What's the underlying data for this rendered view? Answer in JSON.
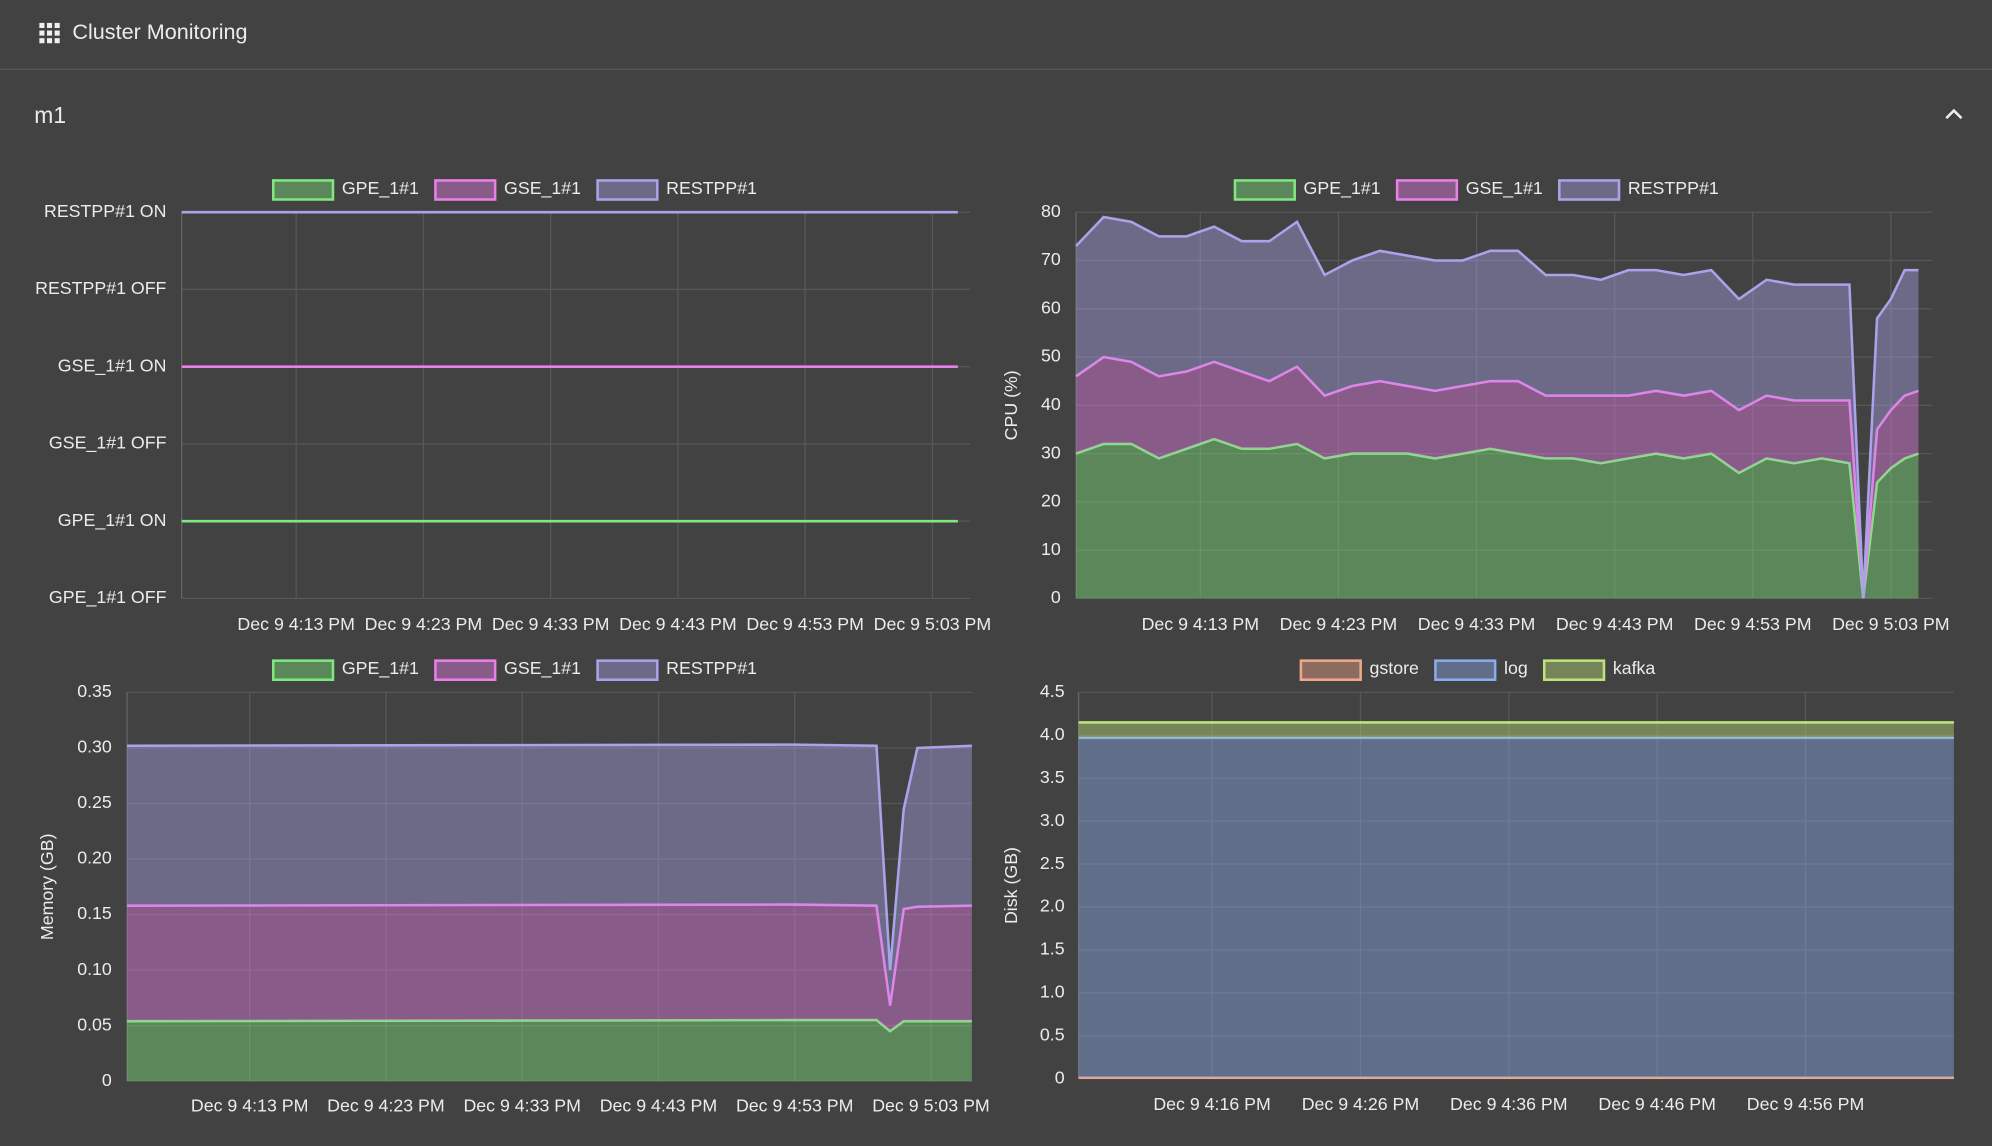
{
  "header": {
    "title": "Cluster Monitoring"
  },
  "section": {
    "title": "m1"
  },
  "chart_data": [
    {
      "type": "line",
      "legend": true,
      "grid": true,
      "x": [
        "Dec 9 4:04 PM",
        "Dec 9 5:05 PM"
      ],
      "xlim": [
        "Dec 9 4:04 PM",
        "Dec 9 5:06 PM"
      ],
      "xticks": [
        "Dec 9 4:13 PM",
        "Dec 9 4:23 PM",
        "Dec 9 4:33 PM",
        "Dec 9 4:43 PM",
        "Dec 9 4:53 PM",
        "Dec 9 5:03 PM"
      ],
      "ylim": [
        0,
        5
      ],
      "yticks": [
        {
          "value": 0,
          "label": "GPE_1#1 OFF"
        },
        {
          "value": 1,
          "label": "GPE_1#1 ON"
        },
        {
          "value": 2,
          "label": "GSE_1#1 OFF"
        },
        {
          "value": 3,
          "label": "GSE_1#1 ON"
        },
        {
          "value": 4,
          "label": "RESTPP#1 OFF"
        },
        {
          "value": 5,
          "label": "RESTPP#1 ON"
        }
      ],
      "series": [
        {
          "name": "GPE_1#1",
          "color": "#7ee87e",
          "values": [
            1,
            1
          ]
        },
        {
          "name": "GSE_1#1",
          "color": "#ea7fea",
          "values": [
            3,
            3
          ]
        },
        {
          "name": "RESTPP#1",
          "color": "#a9a3ea",
          "values": [
            5,
            5
          ]
        }
      ]
    },
    {
      "type": "area",
      "stacked": true,
      "legend": true,
      "grid": true,
      "y_label": "CPU (%)",
      "x": [
        "Dec 9 4:04 PM",
        "Dec 9 4:06 PM",
        "Dec 9 4:08 PM",
        "Dec 9 4:10 PM",
        "Dec 9 4:12 PM",
        "Dec 9 4:14 PM",
        "Dec 9 4:16 PM",
        "Dec 9 4:18 PM",
        "Dec 9 4:20 PM",
        "Dec 9 4:22 PM",
        "Dec 9 4:24 PM",
        "Dec 9 4:26 PM",
        "Dec 9 4:28 PM",
        "Dec 9 4:30 PM",
        "Dec 9 4:32 PM",
        "Dec 9 4:34 PM",
        "Dec 9 4:36 PM",
        "Dec 9 4:38 PM",
        "Dec 9 4:40 PM",
        "Dec 9 4:42 PM",
        "Dec 9 4:44 PM",
        "Dec 9 4:46 PM",
        "Dec 9 4:48 PM",
        "Dec 9 4:50 PM",
        "Dec 9 4:52 PM",
        "Dec 9 4:54 PM",
        "Dec 9 4:56 PM",
        "Dec 9 4:58 PM",
        "Dec 9 5:00 PM",
        "Dec 9 5:01 PM",
        "Dec 9 5:02 PM",
        "Dec 9 5:03 PM",
        "Dec 9 5:04 PM",
        "Dec 9 5:05 PM"
      ],
      "xlim": [
        "Dec 9 4:04 PM",
        "Dec 9 5:06 PM"
      ],
      "xticks": [
        "Dec 9 4:13 PM",
        "Dec 9 4:23 PM",
        "Dec 9 4:33 PM",
        "Dec 9 4:43 PM",
        "Dec 9 4:53 PM",
        "Dec 9 5:03 PM"
      ],
      "ylim": [
        0,
        80
      ],
      "yticks": [
        0,
        10,
        20,
        30,
        40,
        50,
        60,
        70,
        80
      ],
      "series": [
        {
          "name": "GPE_1#1",
          "color": "#7ee87e",
          "values": [
            30,
            32,
            32,
            29,
            31,
            33,
            31,
            31,
            32,
            29,
            30,
            30,
            30,
            29,
            30,
            31,
            30,
            29,
            29,
            28,
            29,
            30,
            29,
            30,
            26,
            29,
            28,
            29,
            28,
            0,
            24,
            27,
            29,
            30
          ]
        },
        {
          "name": "GSE_1#1",
          "color": "#ea7fea",
          "values": [
            16,
            18,
            17,
            17,
            16,
            16,
            16,
            14,
            16,
            13,
            14,
            15,
            14,
            14,
            14,
            14,
            15,
            13,
            13,
            14,
            13,
            13,
            13,
            13,
            13,
            13,
            13,
            12,
            13,
            0,
            11,
            12,
            13,
            13
          ]
        },
        {
          "name": "RESTPP#1",
          "color": "#a9a3ea",
          "values": [
            27,
            29,
            29,
            29,
            28,
            28,
            27,
            29,
            30,
            25,
            26,
            27,
            27,
            27,
            26,
            27,
            27,
            25,
            25,
            24,
            26,
            25,
            25,
            25,
            23,
            24,
            24,
            24,
            24,
            0,
            23,
            23,
            26,
            25
          ]
        }
      ]
    },
    {
      "type": "area",
      "stacked": true,
      "legend": true,
      "grid": true,
      "y_label": "Memory (GB)",
      "x": [
        "Dec 9 4:04 PM",
        "Dec 9 4:53 PM",
        "Dec 9 4:59 PM",
        "Dec 9 5:00 PM",
        "Dec 9 5:01 PM",
        "Dec 9 5:02 PM",
        "Dec 9 5:06 PM"
      ],
      "xlim": [
        "Dec 9 4:04 PM",
        "Dec 9 5:06 PM"
      ],
      "xticks": [
        "Dec 9 4:13 PM",
        "Dec 9 4:23 PM",
        "Dec 9 4:33 PM",
        "Dec 9 4:43 PM",
        "Dec 9 4:53 PM",
        "Dec 9 5:03 PM"
      ],
      "ylim": [
        0,
        0.35
      ],
      "yticks": [
        0,
        0.05,
        {
          "value": 0.1,
          "label": "0.10"
        },
        0.15,
        {
          "value": 0.2,
          "label": "0.20"
        },
        0.25,
        {
          "value": 0.3,
          "label": "0.30"
        },
        0.35
      ],
      "series": [
        {
          "name": "GPE_1#1",
          "color": "#7ee87e",
          "values": [
            0.054,
            0.055,
            0.055,
            0.045,
            0.054,
            0.054,
            0.054
          ]
        },
        {
          "name": "GSE_1#1",
          "color": "#ea7fea",
          "values": [
            0.104,
            0.104,
            0.103,
            0.023,
            0.101,
            0.103,
            0.104
          ]
        },
        {
          "name": "RESTPP#1",
          "color": "#a9a3ea",
          "values": [
            0.144,
            0.144,
            0.144,
            0.032,
            0.09,
            0.143,
            0.144
          ]
        }
      ]
    },
    {
      "type": "area",
      "stacked": true,
      "legend": true,
      "grid": true,
      "y_label": "Disk (GB)",
      "x": [
        "Dec 9 4:07 PM",
        "Dec 9 5:06 PM"
      ],
      "xlim": [
        "Dec 9 4:07 PM",
        "Dec 9 5:06 PM"
      ],
      "xticks": [
        "Dec 9 4:16 PM",
        "Dec 9 4:26 PM",
        "Dec 9 4:36 PM",
        "Dec 9 4:46 PM",
        "Dec 9 4:56 PM"
      ],
      "ylim": [
        0,
        4.5
      ],
      "yticks": [
        0,
        0.5,
        {
          "value": 1,
          "label": "1.0"
        },
        1.5,
        {
          "value": 2,
          "label": "2.0"
        },
        2.5,
        {
          "value": 3,
          "label": "3.0"
        },
        3.5,
        {
          "value": 4,
          "label": "4.0"
        },
        4.5
      ],
      "series": [
        {
          "name": "gstore",
          "color": "#f0a888",
          "values": [
            0.01,
            0.01
          ]
        },
        {
          "name": "log",
          "color": "#8aabec",
          "values": [
            3.96,
            3.96
          ]
        },
        {
          "name": "kafka",
          "color": "#bde27a",
          "values": [
            0.18,
            0.18
          ]
        }
      ]
    }
  ]
}
